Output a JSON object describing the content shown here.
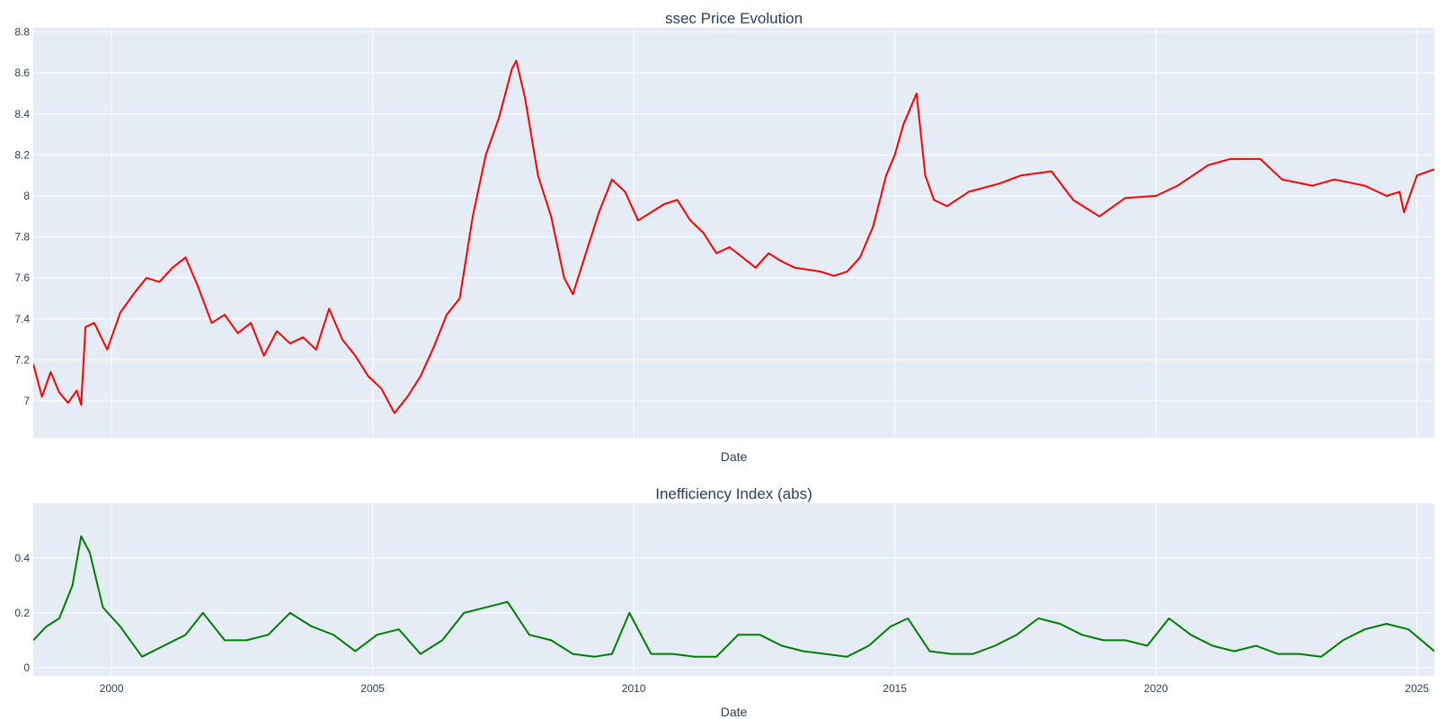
{
  "chart_data": [
    {
      "type": "line",
      "title": "ssec Price Evolution",
      "xlabel": "Date",
      "ylabel": "",
      "x_range": [
        "1998-07",
        "2025-05"
      ],
      "ylim": [
        6.82,
        8.82
      ],
      "yticks": [
        7,
        7.2,
        7.4,
        7.6,
        7.8,
        8,
        8.2,
        8.4,
        8.6,
        8.8
      ],
      "ytick_labels": [
        "7",
        "7.2",
        "7.4",
        "7.6",
        "7.8",
        "8",
        "8.2",
        "8.4",
        "8.6",
        "8.8"
      ],
      "xticks": [
        "2000",
        "2005",
        "2010",
        "2015",
        "2020",
        "2025"
      ],
      "xtick_labels_visible": false,
      "grid": true,
      "color": "#ff0000",
      "series": [
        {
          "x": [
            "1998-07",
            "1998-09",
            "1998-11",
            "1999-01",
            "1999-03",
            "1999-05",
            "1999-06",
            "1999-07",
            "1999-09",
            "1999-12",
            "2000-03",
            "2000-06",
            "2000-09",
            "2000-12",
            "2001-03",
            "2001-06",
            "2001-09",
            "2001-12",
            "2002-03",
            "2002-06",
            "2002-09",
            "2002-12",
            "2003-03",
            "2003-06",
            "2003-09",
            "2003-12",
            "2004-03",
            "2004-06",
            "2004-09",
            "2004-12",
            "2005-03",
            "2005-06",
            "2005-09",
            "2005-12",
            "2006-03",
            "2006-06",
            "2006-09",
            "2006-12",
            "2007-03",
            "2007-06",
            "2007-09",
            "2007-10",
            "2007-12",
            "2008-03",
            "2008-06",
            "2008-09",
            "2008-11",
            "2009-02",
            "2009-05",
            "2009-08",
            "2009-11",
            "2010-02",
            "2010-05",
            "2010-08",
            "2010-11",
            "2011-02",
            "2011-05",
            "2011-08",
            "2011-11",
            "2012-02",
            "2012-05",
            "2012-08",
            "2012-11",
            "2013-02",
            "2013-05",
            "2013-08",
            "2013-11",
            "2014-02",
            "2014-05",
            "2014-08",
            "2014-11",
            "2015-01",
            "2015-03",
            "2015-06",
            "2015-08",
            "2015-10",
            "2016-01",
            "2016-06",
            "2017-01",
            "2017-06",
            "2018-01",
            "2018-06",
            "2018-12",
            "2019-06",
            "2020-01",
            "2020-06",
            "2021-01",
            "2021-06",
            "2022-01",
            "2022-06",
            "2023-01",
            "2023-06",
            "2024-01",
            "2024-06",
            "2024-09",
            "2024-10",
            "2025-01",
            "2025-05"
          ],
          "y": [
            7.18,
            7.02,
            7.14,
            7.04,
            6.99,
            7.05,
            6.98,
            7.36,
            7.38,
            7.25,
            7.43,
            7.52,
            7.6,
            7.58,
            7.65,
            7.7,
            7.55,
            7.38,
            7.42,
            7.33,
            7.38,
            7.22,
            7.34,
            7.28,
            7.31,
            7.25,
            7.45,
            7.3,
            7.22,
            7.12,
            7.06,
            6.94,
            7.02,
            7.12,
            7.26,
            7.42,
            7.5,
            7.9,
            8.2,
            8.38,
            8.62,
            8.66,
            8.48,
            8.1,
            7.9,
            7.6,
            7.52,
            7.72,
            7.92,
            8.08,
            8.02,
            7.88,
            7.92,
            7.96,
            7.98,
            7.88,
            7.82,
            7.72,
            7.75,
            7.7,
            7.65,
            7.72,
            7.68,
            7.65,
            7.64,
            7.63,
            7.61,
            7.63,
            7.7,
            7.85,
            8.1,
            8.2,
            8.35,
            8.5,
            8.1,
            7.98,
            7.95,
            8.02,
            8.06,
            8.1,
            8.12,
            7.98,
            7.9,
            7.99,
            8.0,
            8.05,
            8.15,
            8.18,
            8.18,
            8.08,
            8.05,
            8.08,
            8.05,
            8.0,
            8.02,
            7.92,
            8.1,
            8.13
          ]
        }
      ]
    },
    {
      "type": "line",
      "title": "Inefficiency Index (abs)",
      "xlabel": "Date",
      "ylabel": "",
      "x_range": [
        "1998-07",
        "2025-05"
      ],
      "ylim": [
        -0.03,
        0.6
      ],
      "yticks": [
        0,
        0.2,
        0.4
      ],
      "ytick_labels": [
        "0",
        "0.2",
        "0.4"
      ],
      "xticks": [
        "2000",
        "2005",
        "2010",
        "2015",
        "2020",
        "2025"
      ],
      "xtick_labels": [
        "2000",
        "2005",
        "2010",
        "2015",
        "2020",
        "2025"
      ],
      "grid": true,
      "color": "#008000",
      "series": [
        {
          "x": [
            "1998-07",
            "1998-10",
            "1999-01",
            "1999-04",
            "1999-06",
            "1999-08",
            "1999-11",
            "2000-03",
            "2000-08",
            "2001-01",
            "2001-06",
            "2001-10",
            "2002-03",
            "2002-08",
            "2003-01",
            "2003-06",
            "2003-11",
            "2004-04",
            "2004-09",
            "2005-02",
            "2005-07",
            "2005-12",
            "2006-05",
            "2006-10",
            "2007-03",
            "2007-08",
            "2008-01",
            "2008-06",
            "2008-11",
            "2009-04",
            "2009-08",
            "2009-12",
            "2010-05",
            "2010-10",
            "2011-03",
            "2011-08",
            "2012-01",
            "2012-06",
            "2012-11",
            "2013-04",
            "2013-09",
            "2014-02",
            "2014-07",
            "2014-12",
            "2015-04",
            "2015-09",
            "2016-02",
            "2016-07",
            "2016-12",
            "2017-05",
            "2017-10",
            "2018-03",
            "2018-08",
            "2019-01",
            "2019-06",
            "2019-11",
            "2020-04",
            "2020-09",
            "2021-02",
            "2021-07",
            "2021-12",
            "2022-05",
            "2022-10",
            "2023-03",
            "2023-08",
            "2024-01",
            "2024-06",
            "2024-11",
            "2025-05"
          ],
          "y": [
            0.1,
            0.15,
            0.18,
            0.3,
            0.48,
            0.42,
            0.22,
            0.15,
            0.04,
            0.08,
            0.12,
            0.2,
            0.1,
            0.1,
            0.12,
            0.2,
            0.15,
            0.12,
            0.06,
            0.12,
            0.14,
            0.05,
            0.1,
            0.2,
            0.22,
            0.24,
            0.12,
            0.1,
            0.05,
            0.04,
            0.05,
            0.2,
            0.05,
            0.05,
            0.04,
            0.04,
            0.12,
            0.12,
            0.08,
            0.06,
            0.05,
            0.04,
            0.08,
            0.15,
            0.18,
            0.06,
            0.05,
            0.05,
            0.08,
            0.12,
            0.18,
            0.16,
            0.12,
            0.1,
            0.1,
            0.08,
            0.18,
            0.12,
            0.08,
            0.06,
            0.08,
            0.05,
            0.05,
            0.04,
            0.1,
            0.14,
            0.16,
            0.14,
            0.06
          ]
        }
      ]
    }
  ]
}
